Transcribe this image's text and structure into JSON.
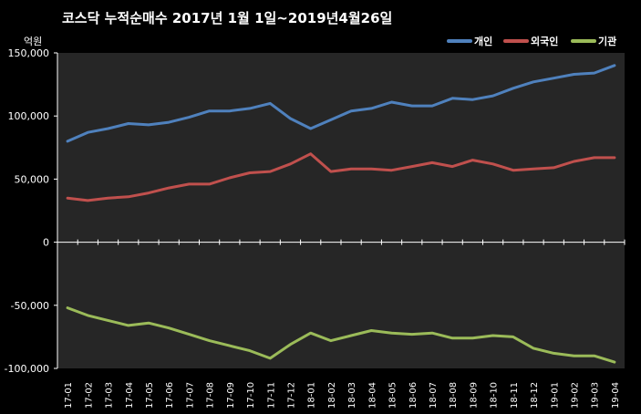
{
  "chart_data": {
    "type": "line",
    "title": "코스닥  누적순매수  2017년 1월 1일~2019년4월26일",
    "unit_label": "억원",
    "ylim": [
      -100000,
      150000
    ],
    "yticks": [
      "150,000",
      "100,000",
      "50,000",
      "0",
      "-50,000",
      "-100,000"
    ],
    "ytick_values": [
      150000,
      100000,
      50000,
      0,
      -50000,
      -100000
    ],
    "x": [
      "17-01",
      "17-02",
      "17-03",
      "17-04",
      "17-05",
      "17-06",
      "17-07",
      "17-08",
      "17-09",
      "17-10",
      "17-11",
      "17-12",
      "18-01",
      "18-02",
      "18-03",
      "18-04",
      "18-05",
      "18-06",
      "18-07",
      "18-08",
      "18-09",
      "18-10",
      "18-11",
      "18-12",
      "19-01",
      "19-02",
      "19-03",
      "19-04"
    ],
    "legend_position": "top-right",
    "grid": false,
    "series": [
      {
        "name": "개인",
        "color": "#4f81bd",
        "values": [
          80000,
          87000,
          90000,
          94000,
          93000,
          95000,
          99000,
          104000,
          104000,
          106000,
          110000,
          98000,
          90000,
          97000,
          104000,
          106000,
          111000,
          108000,
          108000,
          114000,
          113000,
          116000,
          122000,
          127000,
          130000,
          133000,
          134000,
          140000
        ]
      },
      {
        "name": "외국인",
        "color": "#c0504d",
        "values": [
          35000,
          33000,
          35000,
          36000,
          39000,
          43000,
          46000,
          46000,
          51000,
          55000,
          56000,
          62000,
          70000,
          56000,
          58000,
          58000,
          57000,
          60000,
          63000,
          60000,
          65000,
          62000,
          57000,
          58000,
          59000,
          64000,
          67000,
          67000
        ]
      },
      {
        "name": "기관",
        "color": "#9bbb59",
        "values": [
          -52000,
          -58000,
          -62000,
          -66000,
          -64000,
          -68000,
          -73000,
          -78000,
          -82000,
          -86000,
          -92000,
          -81000,
          -72000,
          -78000,
          -74000,
          -70000,
          -72000,
          -73000,
          -72000,
          -76000,
          -76000,
          -74000,
          -75000,
          -84000,
          -88000,
          -90000,
          -90000,
          -95000
        ]
      }
    ]
  }
}
